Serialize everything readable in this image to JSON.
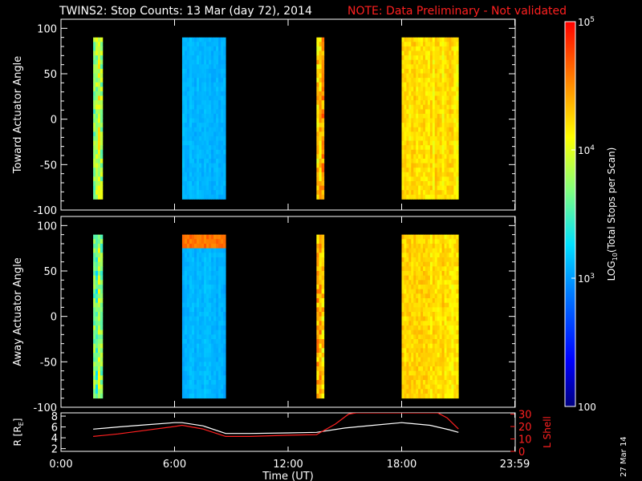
{
  "title": {
    "main": "TWINS2: Stop Counts: 13 Mar (day  72), 2014",
    "note": "NOTE: Data Preliminary - Not validated"
  },
  "stamp": "27 Mar 14",
  "colors": {
    "background": "#000000",
    "axes": "#ffffff",
    "note": "#ff2020",
    "r_line": "#ffffff",
    "lshell_line": "#ff2020"
  },
  "colorbar": {
    "label": "LOG10(Total Stops per Scan)",
    "label_main": "LOG",
    "label_sub": "10",
    "label_rest": "(Total Stops per Scan)",
    "ticks": [
      {
        "value": 100,
        "label": "100",
        "exp": ""
      },
      {
        "value": 1000,
        "label": "10",
        "exp": "3"
      },
      {
        "value": 10000,
        "label": "10",
        "exp": "4"
      },
      {
        "value": 100000,
        "label": "10",
        "exp": "5"
      }
    ],
    "range": [
      100,
      100000
    ],
    "scale": "log"
  },
  "x_axis": {
    "label": "Time (UT)",
    "ticks": [
      {
        "value": 0,
        "label": "0:00"
      },
      {
        "value": 6,
        "label": "6:00"
      },
      {
        "value": 12,
        "label": "12:00"
      },
      {
        "value": 18,
        "label": "18:00"
      },
      {
        "value": 23.98,
        "label": "23:59"
      }
    ],
    "range": [
      0,
      24
    ]
  },
  "chart_data": [
    {
      "type": "heatmap",
      "ylabel": "Toward Actuator Angle",
      "ylim": [
        -100,
        110
      ],
      "yticks": [
        "100",
        "50",
        "0",
        "-50",
        "-100"
      ],
      "ytick_values": [
        100,
        50,
        0,
        -50,
        -100
      ],
      "angle_range": [
        -88,
        90
      ],
      "segments": [
        {
          "start_hour": 1.7,
          "end_hour": 2.2,
          "level_log10": 3.9,
          "variability": "high"
        },
        {
          "start_hour": 6.4,
          "end_hour": 8.7,
          "level_log10": 3.1,
          "variability": "low"
        },
        {
          "start_hour": 13.5,
          "end_hour": 13.9,
          "level_log10": 4.3,
          "variability": "high"
        },
        {
          "start_hour": 18.0,
          "end_hour": 21.0,
          "level_log10": 4.2,
          "variability": "medium"
        }
      ]
    },
    {
      "type": "heatmap",
      "ylabel": "Away Actuator Angle",
      "ylim": [
        -100,
        110
      ],
      "yticks": [
        "100",
        "50",
        "0",
        "-50",
        "-100"
      ],
      "ytick_values": [
        100,
        50,
        0,
        -50,
        -100
      ],
      "angle_range": [
        -90,
        90
      ],
      "segments": [
        {
          "start_hour": 1.7,
          "end_hour": 2.2,
          "level_log10": 3.7,
          "variability": "high"
        },
        {
          "start_hour": 6.4,
          "end_hour": 8.7,
          "level_log10": 3.1,
          "variability": "low",
          "top_band_log10": 4.6
        },
        {
          "start_hour": 13.5,
          "end_hour": 13.9,
          "level_log10": 4.3,
          "variability": "high"
        },
        {
          "start_hour": 18.0,
          "end_hour": 21.0,
          "level_log10": 4.2,
          "variability": "medium"
        }
      ]
    },
    {
      "type": "line",
      "ylabel_left": "R [RE]",
      "ylabel_left_main": "R [R",
      "ylabel_left_sub": "E",
      "ylabel_left_end": "]",
      "ylabel_right": "L Shell",
      "yticks_left": [
        "2",
        "4",
        "6",
        "8"
      ],
      "ytick_values_left": [
        2,
        4,
        6,
        8
      ],
      "ylim_left": [
        1.5,
        8.6
      ],
      "yticks_right": [
        "0",
        "10",
        "20",
        "30"
      ],
      "ytick_values_right": [
        0,
        10,
        20,
        30
      ],
      "ylim_right": [
        0,
        31
      ],
      "series": [
        {
          "name": "R [RE]",
          "axis": "left",
          "color": "#ffffff",
          "x": [
            1.7,
            3.0,
            4.5,
            6.0,
            6.4,
            7.5,
            8.7,
            10.0,
            12.0,
            13.5,
            15.0,
            16.5,
            18.0,
            19.5,
            20.5,
            21.0
          ],
          "y": [
            5.6,
            6.0,
            6.4,
            6.8,
            6.8,
            6.2,
            4.8,
            4.8,
            4.9,
            5.0,
            5.8,
            6.3,
            6.8,
            6.3,
            5.5,
            5.0
          ]
        },
        {
          "name": "L Shell",
          "axis": "right",
          "color": "#ff2020",
          "x": [
            1.7,
            3.0,
            4.5,
            6.0,
            6.4,
            7.5,
            8.7,
            10.0,
            12.0,
            13.5,
            14.5,
            15.2,
            15.6,
            19.9,
            20.4,
            21.0
          ],
          "y": [
            12,
            14,
            17,
            20,
            21,
            18,
            12,
            12,
            13,
            13.5,
            22,
            30,
            31,
            31,
            27,
            18
          ]
        }
      ]
    }
  ]
}
